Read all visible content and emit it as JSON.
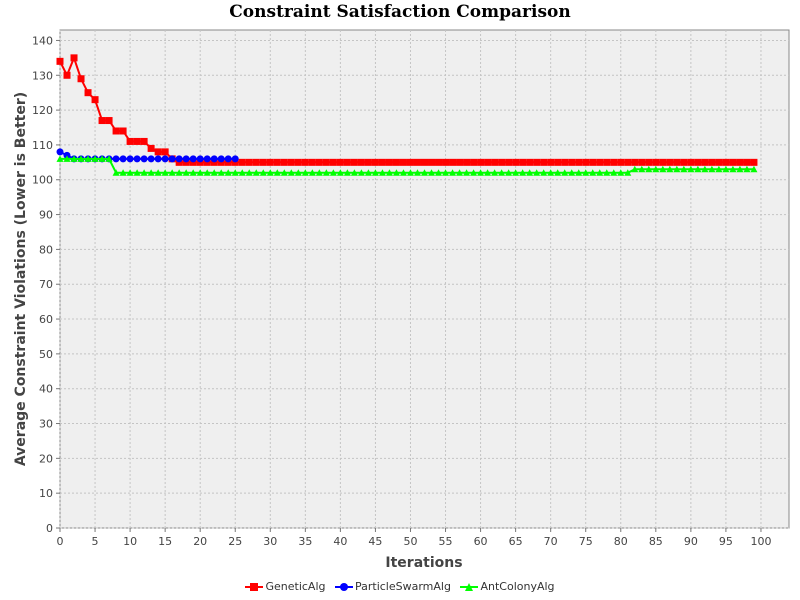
{
  "chart_data": {
    "type": "line",
    "title": "Constraint Satisfaction Comparison",
    "xlabel": "Iterations",
    "ylabel": "Average Constraint Violations (Lower is Better)",
    "xlim": [
      0,
      104
    ],
    "ylim": [
      0,
      143
    ],
    "xticks": [
      0,
      5,
      10,
      15,
      20,
      25,
      30,
      35,
      40,
      45,
      50,
      55,
      60,
      65,
      70,
      75,
      80,
      85,
      90,
      95,
      100
    ],
    "yticks": [
      0,
      10,
      20,
      30,
      40,
      50,
      60,
      70,
      80,
      90,
      100,
      110,
      120,
      130,
      140
    ],
    "grid": true,
    "legend_position": "bottom-center",
    "series": [
      {
        "name": "GeneticAlg",
        "color": "#ff0000",
        "marker": "square",
        "x": [
          0,
          1,
          2,
          3,
          4,
          5,
          6,
          7,
          8,
          9,
          10,
          11,
          12,
          13,
          14,
          15,
          16,
          17,
          18,
          19,
          20,
          21,
          22,
          23,
          24,
          25,
          26,
          27,
          28,
          29,
          30,
          31,
          32,
          33,
          34,
          35,
          36,
          37,
          38,
          39,
          40,
          41,
          42,
          43,
          44,
          45,
          46,
          47,
          48,
          49,
          50,
          51,
          52,
          53,
          54,
          55,
          56,
          57,
          58,
          59,
          60,
          61,
          62,
          63,
          64,
          65,
          66,
          67,
          68,
          69,
          70,
          71,
          72,
          73,
          74,
          75,
          76,
          77,
          78,
          79,
          80,
          81,
          82,
          83,
          84,
          85,
          86,
          87,
          88,
          89,
          90,
          91,
          92,
          93,
          94,
          95,
          96,
          97,
          98,
          99
        ],
        "y": [
          134,
          130,
          135,
          129,
          125,
          123,
          117,
          117,
          114,
          114,
          111,
          111,
          111,
          109,
          108,
          108,
          106,
          105,
          105,
          105,
          105,
          105,
          105,
          105,
          105,
          105,
          105,
          105,
          105,
          105,
          105,
          105,
          105,
          105,
          105,
          105,
          105,
          105,
          105,
          105,
          105,
          105,
          105,
          105,
          105,
          105,
          105,
          105,
          105,
          105,
          105,
          105,
          105,
          105,
          105,
          105,
          105,
          105,
          105,
          105,
          105,
          105,
          105,
          105,
          105,
          105,
          105,
          105,
          105,
          105,
          105,
          105,
          105,
          105,
          105,
          105,
          105,
          105,
          105,
          105,
          105,
          105,
          105,
          105,
          105,
          105,
          105,
          105,
          105,
          105,
          105,
          105,
          105,
          105,
          105,
          105,
          105,
          105,
          105,
          105
        ]
      },
      {
        "name": "ParticleSwarmAlg",
        "color": "#0000ff",
        "marker": "circle",
        "x": [
          0,
          1,
          2,
          3,
          4,
          5,
          6,
          7,
          8,
          9,
          10,
          11,
          12,
          13,
          14,
          15,
          16,
          17,
          18,
          19,
          20,
          21,
          22,
          23,
          24,
          25
        ],
        "y": [
          108,
          107,
          106,
          106,
          106,
          106,
          106,
          106,
          106,
          106,
          106,
          106,
          106,
          106,
          106,
          106,
          106,
          106,
          106,
          106,
          106,
          106,
          106,
          106,
          106,
          106
        ]
      },
      {
        "name": "AntColonyAlg",
        "color": "#00ff00",
        "marker": "triangle",
        "x": [
          0,
          1,
          2,
          3,
          4,
          5,
          6,
          7,
          8,
          9,
          10,
          11,
          12,
          13,
          14,
          15,
          16,
          17,
          18,
          19,
          20,
          21,
          22,
          23,
          24,
          25,
          26,
          27,
          28,
          29,
          30,
          31,
          32,
          33,
          34,
          35,
          36,
          37,
          38,
          39,
          40,
          41,
          42,
          43,
          44,
          45,
          46,
          47,
          48,
          49,
          50,
          51,
          52,
          53,
          54,
          55,
          56,
          57,
          58,
          59,
          60,
          61,
          62,
          63,
          64,
          65,
          66,
          67,
          68,
          69,
          70,
          71,
          72,
          73,
          74,
          75,
          76,
          77,
          78,
          79,
          80,
          81,
          82,
          83,
          84,
          85,
          86,
          87,
          88,
          89,
          90,
          91,
          92,
          93,
          94,
          95,
          96,
          97,
          98,
          99
        ],
        "y": [
          106,
          106,
          106,
          106,
          106,
          106,
          106,
          106,
          102,
          102,
          102,
          102,
          102,
          102,
          102,
          102,
          102,
          102,
          102,
          102,
          102,
          102,
          102,
          102,
          102,
          102,
          102,
          102,
          102,
          102,
          102,
          102,
          102,
          102,
          102,
          102,
          102,
          102,
          102,
          102,
          102,
          102,
          102,
          102,
          102,
          102,
          102,
          102,
          102,
          102,
          102,
          102,
          102,
          102,
          102,
          102,
          102,
          102,
          102,
          102,
          102,
          102,
          102,
          102,
          102,
          102,
          102,
          102,
          102,
          102,
          102,
          102,
          102,
          102,
          102,
          102,
          102,
          102,
          102,
          102,
          102,
          102,
          103,
          103,
          103,
          103,
          103,
          103,
          103,
          103,
          103,
          103,
          103,
          103,
          103,
          103,
          103,
          103,
          103,
          103
        ]
      }
    ]
  }
}
